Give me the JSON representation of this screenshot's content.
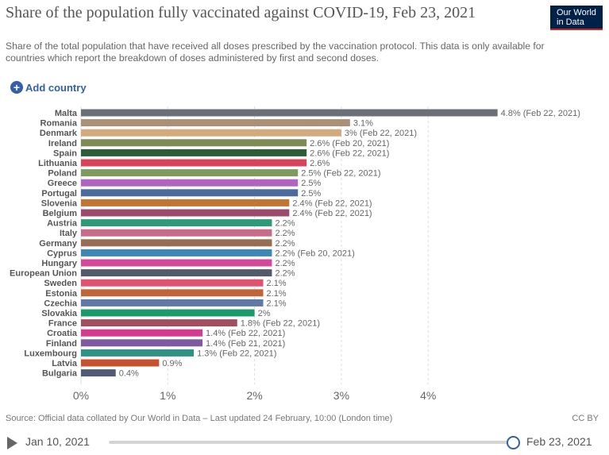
{
  "header": {
    "title": "Share of the population fully vaccinated against COVID-19, Feb 23, 2021",
    "subtitle": "Share of the total population that have received all doses prescribed by the vaccination protocol. This data is only available for countries which report the breakdown of doses administered by first and second doses.",
    "logo_text": "Our World in Data"
  },
  "controls": {
    "add_country_label": "Add country"
  },
  "chart_data": {
    "type": "bar",
    "orientation": "horizontal",
    "title": "Share of the population fully vaccinated against COVID-19, Feb 23, 2021",
    "xlabel": "",
    "ylabel": "",
    "xlim": [
      0,
      4.8
    ],
    "x_ticks": [
      "0%",
      "1%",
      "2%",
      "3%",
      "4%"
    ],
    "x_tick_values": [
      0,
      1,
      2,
      3,
      4
    ],
    "grid": "vertical dashed",
    "bars": [
      {
        "category": "Malta",
        "value": 4.8,
        "label": "4.8% (Feb 22, 2021)",
        "color": "#6c6f78"
      },
      {
        "category": "Romania",
        "value": 3.1,
        "label": "3.1%",
        "color": "#a99077"
      },
      {
        "category": "Denmark",
        "value": 3.0,
        "label": "3% (Feb 22, 2021)",
        "color": "#d3a97e"
      },
      {
        "category": "Ireland",
        "value": 2.6,
        "label": "2.6% (Feb 20, 2021)",
        "color": "#7f8a55"
      },
      {
        "category": "Spain",
        "value": 2.6,
        "label": "2.6% (Feb 22, 2021)",
        "color": "#2d5d38"
      },
      {
        "category": "Lithuania",
        "value": 2.6,
        "label": "2.6%",
        "color": "#d8425a"
      },
      {
        "category": "Poland",
        "value": 2.5,
        "label": "2.5% (Feb 22, 2021)",
        "color": "#7e9b5d"
      },
      {
        "category": "Greece",
        "value": 2.5,
        "label": "2.5%",
        "color": "#b064c0"
      },
      {
        "category": "Portugal",
        "value": 2.5,
        "label": "2.5%",
        "color": "#4c6a9c"
      },
      {
        "category": "Slovenia",
        "value": 2.4,
        "label": "2.4% (Feb 22, 2021)",
        "color": "#c27533"
      },
      {
        "category": "Belgium",
        "value": 2.4,
        "label": "2.4% (Feb 22, 2021)",
        "color": "#9a4b6c"
      },
      {
        "category": "Austria",
        "value": 2.2,
        "label": "2.2%",
        "color": "#2e9a78"
      },
      {
        "category": "Italy",
        "value": 2.2,
        "label": "2.2%",
        "color": "#c86b89"
      },
      {
        "category": "Germany",
        "value": 2.2,
        "label": "2.2%",
        "color": "#996d53"
      },
      {
        "category": "Cyprus",
        "value": 2.2,
        "label": "2.2% (Feb 20, 2021)",
        "color": "#3c88b2"
      },
      {
        "category": "Hungary",
        "value": 2.2,
        "label": "2.2%",
        "color": "#d4489a"
      },
      {
        "category": "European Union",
        "value": 2.2,
        "label": "2.2%",
        "color": "#525a6c"
      },
      {
        "category": "Sweden",
        "value": 2.1,
        "label": "2.1%",
        "color": "#e05270"
      },
      {
        "category": "Estonia",
        "value": 2.1,
        "label": "2.1%",
        "color": "#c0653a"
      },
      {
        "category": "Czechia",
        "value": 2.1,
        "label": "2.1%",
        "color": "#6078a8"
      },
      {
        "category": "Slovakia",
        "value": 2.0,
        "label": "2%",
        "color": "#1b9b6d"
      },
      {
        "category": "France",
        "value": 1.8,
        "label": "1.8% (Feb 22, 2021)",
        "color": "#a14f5e"
      },
      {
        "category": "Croatia",
        "value": 1.4,
        "label": "1.4% (Feb 22, 2021)",
        "color": "#d6398f"
      },
      {
        "category": "Finland",
        "value": 1.4,
        "label": "1.4% (Feb 21, 2021)",
        "color": "#7f5aa0"
      },
      {
        "category": "Luxembourg",
        "value": 1.3,
        "label": "1.3% (Feb 22, 2021)",
        "color": "#2e9286"
      },
      {
        "category": "Latvia",
        "value": 0.9,
        "label": "0.9%",
        "color": "#c7512e"
      },
      {
        "category": "Bulgaria",
        "value": 0.4,
        "label": "0.4%",
        "color": "#4f5b77"
      }
    ]
  },
  "footer": {
    "source": "Source: Official data collated by Our World in Data – Last updated 24 February, 10:00 (London time)",
    "license": "CC BY"
  },
  "timeline": {
    "start_date": "Jan 10, 2021",
    "end_date": "Feb 23, 2021",
    "position": 1.0
  }
}
